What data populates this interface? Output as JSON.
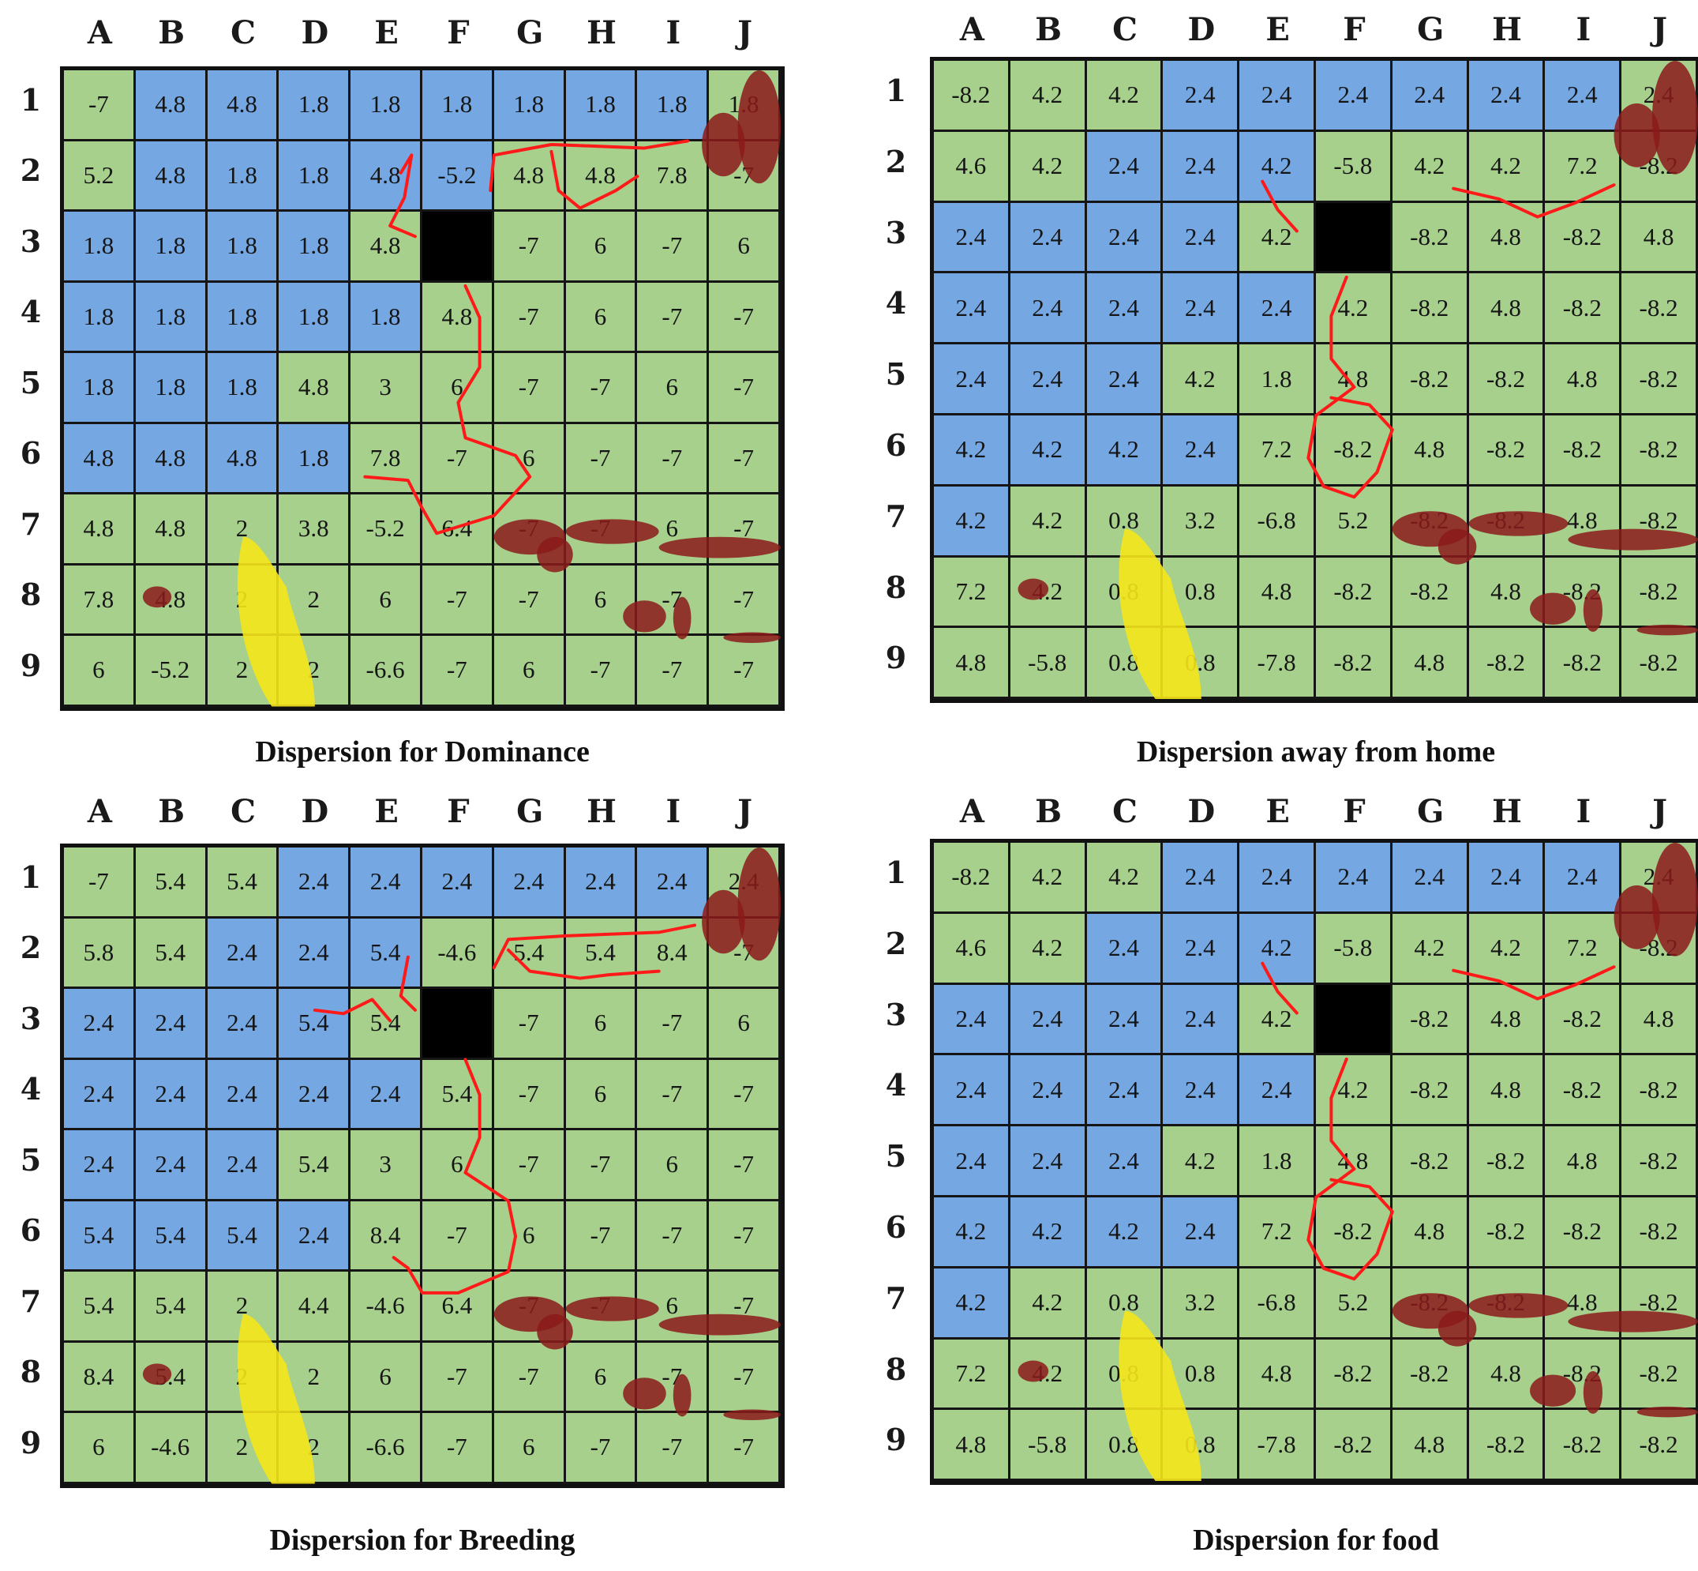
{
  "columns": [
    "A",
    "B",
    "C",
    "D",
    "E",
    "F",
    "G",
    "H",
    "I",
    "J"
  ],
  "rows": [
    "1",
    "2",
    "3",
    "4",
    "5",
    "6",
    "7",
    "8",
    "9"
  ],
  "panels": [
    {
      "caption": "Dispersion for Dominance",
      "values": [
        [
          "-7",
          "4.8",
          "4.8",
          "1.8",
          "1.8",
          "1.8",
          "1.8",
          "1.8",
          "1.8",
          "1.8"
        ],
        [
          "5.2",
          "4.8",
          "1.8",
          "1.8",
          "4.8",
          "-5.2",
          "4.8",
          "4.8",
          "7.8",
          "-7"
        ],
        [
          "1.8",
          "1.8",
          "1.8",
          "1.8",
          "4.8",
          "",
          "-7",
          "6",
          "-7",
          "6"
        ],
        [
          "1.8",
          "1.8",
          "1.8",
          "1.8",
          "1.8",
          "4.8",
          "-7",
          "6",
          "-7",
          "-7"
        ],
        [
          "1.8",
          "1.8",
          "1.8",
          "4.8",
          "3",
          "6",
          "-7",
          "-7",
          "6",
          "-7"
        ],
        [
          "4.8",
          "4.8",
          "4.8",
          "1.8",
          "7.8",
          "-7",
          "6",
          "-7",
          "-7",
          "-7"
        ],
        [
          "4.8",
          "4.8",
          "2",
          "3.8",
          "-5.2",
          "6.4",
          "-7",
          "-7",
          "6",
          "-7"
        ],
        [
          "7.8",
          "4.8",
          "2",
          "2",
          "6",
          "-7",
          "-7",
          "6",
          "-7",
          "-7"
        ],
        [
          "6",
          "-5.2",
          "2",
          "2",
          "-6.6",
          "-7",
          "6",
          "-7",
          "-7",
          "-7"
        ]
      ]
    },
    {
      "caption": "Dispersion away from home",
      "values": [
        [
          "-8.2",
          "4.2",
          "4.2",
          "2.4",
          "2.4",
          "2.4",
          "2.4",
          "2.4",
          "2.4",
          "2.4"
        ],
        [
          "4.6",
          "4.2",
          "2.4",
          "2.4",
          "4.2",
          "-5.8",
          "4.2",
          "4.2",
          "7.2",
          "-8.2"
        ],
        [
          "2.4",
          "2.4",
          "2.4",
          "2.4",
          "4.2",
          "",
          "-8.2",
          "4.8",
          "-8.2",
          "4.8"
        ],
        [
          "2.4",
          "2.4",
          "2.4",
          "2.4",
          "2.4",
          "4.2",
          "-8.2",
          "4.8",
          "-8.2",
          "-8.2"
        ],
        [
          "2.4",
          "2.4",
          "2.4",
          "4.2",
          "1.8",
          "4.8",
          "-8.2",
          "-8.2",
          "4.8",
          "-8.2"
        ],
        [
          "4.2",
          "4.2",
          "4.2",
          "2.4",
          "7.2",
          "-8.2",
          "4.8",
          "-8.2",
          "-8.2",
          "-8.2"
        ],
        [
          "4.2",
          "4.2",
          "0.8",
          "3.2",
          "-6.8",
          "5.2",
          "-8.2",
          "-8.2",
          "4.8",
          "-8.2"
        ],
        [
          "7.2",
          "4.2",
          "0.8",
          "0.8",
          "4.8",
          "-8.2",
          "-8.2",
          "4.8",
          "-8.2",
          "-8.2"
        ],
        [
          "4.8",
          "-5.8",
          "0.8",
          "0.8",
          "-7.8",
          "-8.2",
          "4.8",
          "-8.2",
          "-8.2",
          "-8.2"
        ]
      ]
    },
    {
      "caption": "Dispersion for Breeding",
      "values": [
        [
          "-7",
          "5.4",
          "5.4",
          "2.4",
          "2.4",
          "2.4",
          "2.4",
          "2.4",
          "2.4",
          "2.4"
        ],
        [
          "5.8",
          "5.4",
          "2.4",
          "2.4",
          "5.4",
          "-4.6",
          "5.4",
          "5.4",
          "8.4",
          "-7"
        ],
        [
          "2.4",
          "2.4",
          "2.4",
          "5.4",
          "5.4",
          "",
          "-7",
          "6",
          "-7",
          "6"
        ],
        [
          "2.4",
          "2.4",
          "2.4",
          "2.4",
          "2.4",
          "5.4",
          "-7",
          "6",
          "-7",
          "-7"
        ],
        [
          "2.4",
          "2.4",
          "2.4",
          "5.4",
          "3",
          "6",
          "-7",
          "-7",
          "6",
          "-7"
        ],
        [
          "5.4",
          "5.4",
          "5.4",
          "2.4",
          "8.4",
          "-7",
          "6",
          "-7",
          "-7",
          "-7"
        ],
        [
          "5.4",
          "5.4",
          "2",
          "4.4",
          "-4.6",
          "6.4",
          "-7",
          "-7",
          "6",
          "-7"
        ],
        [
          "8.4",
          "5.4",
          "2",
          "2",
          "6",
          "-7",
          "-7",
          "6",
          "-7",
          "-7"
        ],
        [
          "6",
          "-4.6",
          "2",
          "2",
          "-6.6",
          "-7",
          "6",
          "-7",
          "-7",
          "-7"
        ]
      ]
    },
    {
      "caption": "Dispersion for food",
      "values": [
        [
          "-8.2",
          "4.2",
          "4.2",
          "2.4",
          "2.4",
          "2.4",
          "2.4",
          "2.4",
          "2.4",
          "2.4"
        ],
        [
          "4.6",
          "4.2",
          "2.4",
          "2.4",
          "4.2",
          "-5.8",
          "4.2",
          "4.2",
          "7.2",
          "-8.2"
        ],
        [
          "2.4",
          "2.4",
          "2.4",
          "2.4",
          "4.2",
          "",
          "-8.2",
          "4.8",
          "-8.2",
          "4.8"
        ],
        [
          "2.4",
          "2.4",
          "2.4",
          "2.4",
          "2.4",
          "4.2",
          "-8.2",
          "4.8",
          "-8.2",
          "-8.2"
        ],
        [
          "2.4",
          "2.4",
          "2.4",
          "4.2",
          "1.8",
          "4.8",
          "-8.2",
          "-8.2",
          "4.8",
          "-8.2"
        ],
        [
          "4.2",
          "4.2",
          "4.2",
          "2.4",
          "7.2",
          "-8.2",
          "4.8",
          "-8.2",
          "-8.2",
          "-8.2"
        ],
        [
          "4.2",
          "4.2",
          "0.8",
          "3.2",
          "-6.8",
          "5.2",
          "-8.2",
          "-8.2",
          "4.8",
          "-8.2"
        ],
        [
          "7.2",
          "4.2",
          "0.8",
          "0.8",
          "4.8",
          "-8.2",
          "-8.2",
          "4.8",
          "-8.2",
          "-8.2"
        ],
        [
          "4.8",
          "-5.8",
          "0.8",
          "0.8",
          "-7.8",
          "-8.2",
          "4.8",
          "-8.2",
          "-8.2",
          "-8.2"
        ]
      ]
    }
  ],
  "colors": {
    "land": "#a7d08d",
    "water": "#75a7e3",
    "sand": "#f5e61a",
    "rock": "#8b1a1a",
    "grid_line": "#151515",
    "path": "#ff1a1a",
    "origin": "#000000"
  }
}
